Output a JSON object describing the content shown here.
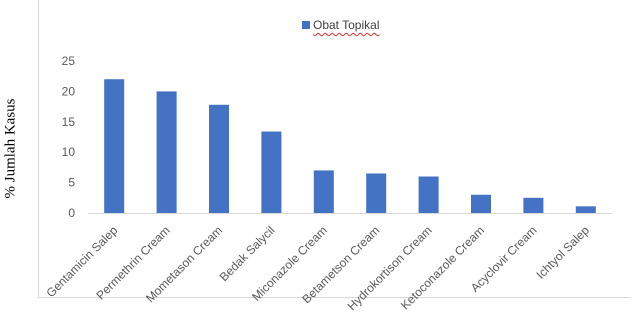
{
  "chart_data": {
    "type": "bar",
    "title": "",
    "xlabel": "",
    "ylabel": "% Jumlah Kasus",
    "ylim": [
      0,
      25
    ],
    "yticks": [
      0,
      5,
      10,
      15,
      20,
      25
    ],
    "grid": false,
    "legend_position": "top",
    "color": "#4472c4",
    "categories": [
      "Gentamicin Salep",
      "Permethrin Cream",
      "Mometason Cream",
      "Bedak Salycil",
      "Miconazole Cream",
      "Betametson Cream",
      "Hydrokortison Cream",
      "Ketoconazole Cream",
      "Acyclovir Cream",
      "Ichtyol Salep"
    ],
    "series": [
      {
        "name": "Obat Topikal",
        "values": [
          22,
          20,
          17.8,
          13.4,
          7,
          6.5,
          6,
          3,
          2.5,
          1.1
        ]
      }
    ]
  }
}
